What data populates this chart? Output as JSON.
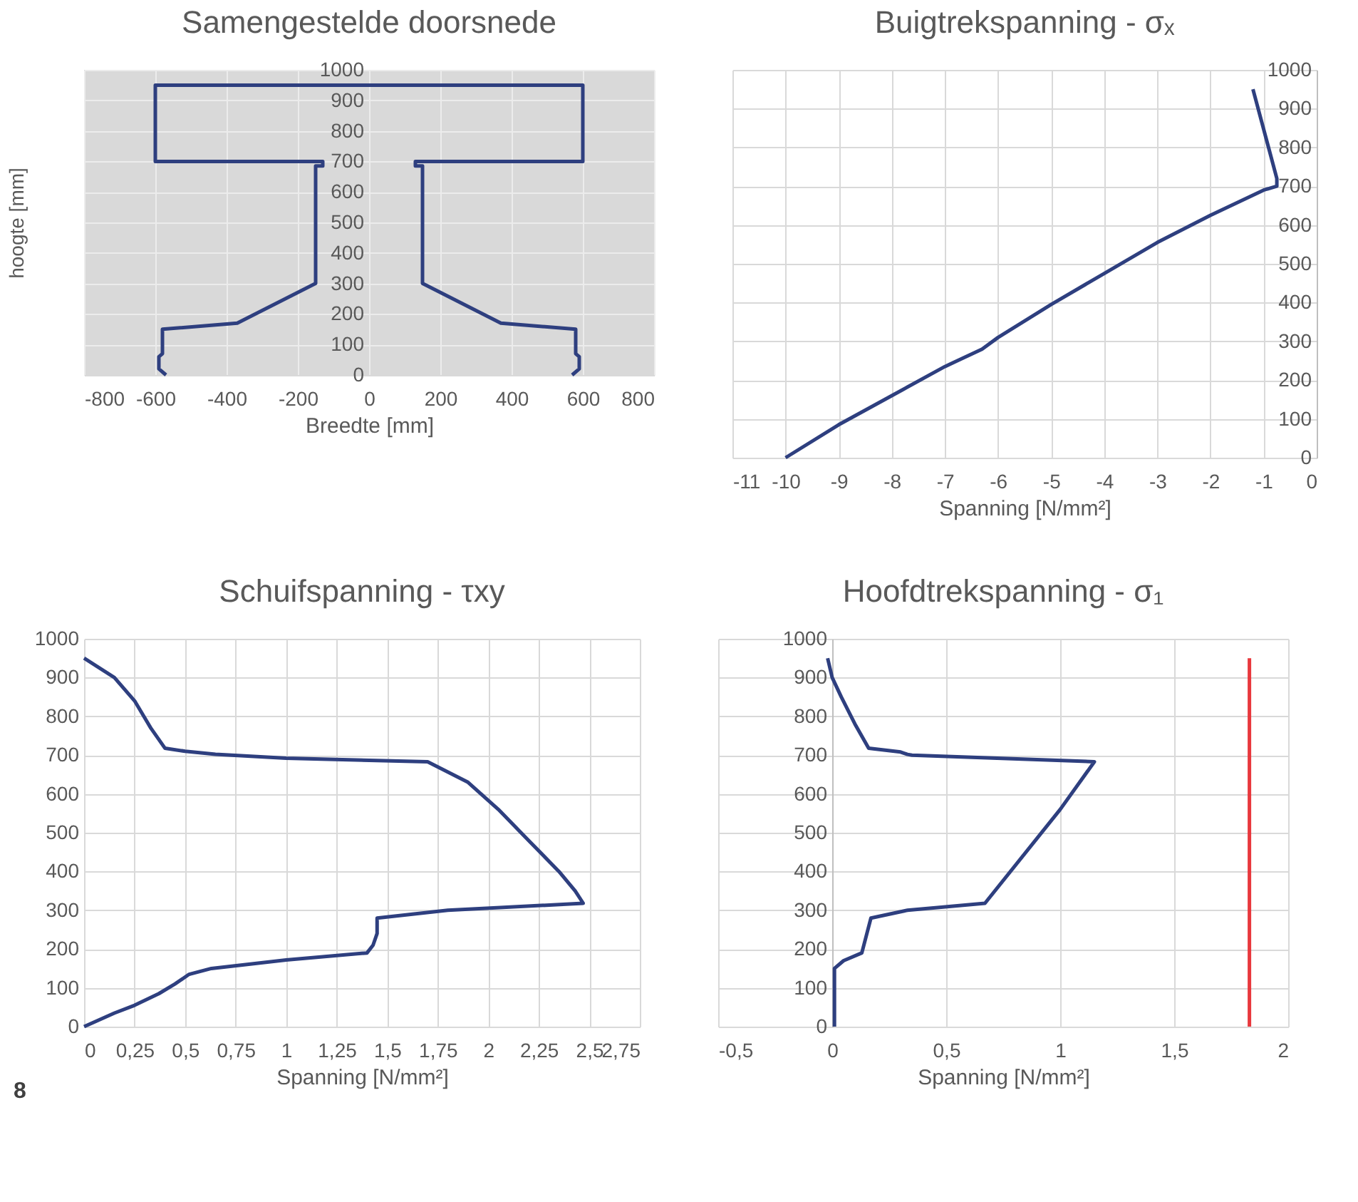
{
  "chart_data": [
    {
      "type": "line",
      "title": "Samengestelde doorsnede",
      "xlabel": "Breedte [mm]",
      "ylabel": "hoogte [mm]",
      "xlim": [
        -800,
        800
      ],
      "xticks": [
        -800,
        -600,
        -400,
        -200,
        0,
        200,
        400,
        600,
        800
      ],
      "ylim": [
        0,
        1000
      ],
      "yticks": [
        0,
        100,
        200,
        300,
        400,
        500,
        600,
        700,
        800,
        900,
        1000
      ],
      "grid": true,
      "marker": "none",
      "line_style": "solid",
      "series": [
        {
          "color": "#2e3f7f",
          "x": [
            -570,
            -590,
            -590,
            -580,
            -580,
            -370,
            -150,
            -150,
            -130,
            -130,
            -600,
            -600,
            600,
            600,
            130,
            130,
            150,
            150,
            370,
            580,
            580,
            590,
            590,
            570
          ],
          "values": [
            0,
            20,
            60,
            70,
            150,
            170,
            300,
            685,
            685,
            700,
            700,
            950,
            950,
            700,
            700,
            685,
            685,
            300,
            170,
            150,
            70,
            60,
            20,
            0
          ]
        }
      ]
    },
    {
      "type": "line",
      "title": "Buigtrekspanning - σₓ",
      "xlabel": "Spanning [N/mm²]",
      "xlim": [
        -11,
        0
      ],
      "xticks": [
        -11,
        -10,
        -9,
        -8,
        -7,
        -6,
        -5,
        -4,
        -3,
        -2,
        -1,
        0
      ],
      "ylim": [
        0,
        1000
      ],
      "yticks": [
        0,
        100,
        200,
        300,
        400,
        500,
        600,
        700,
        800,
        900,
        1000
      ],
      "grid": true,
      "marker": "none",
      "line_style": "solid",
      "series": [
        {
          "color": "#2e3f7f",
          "x": [
            -10,
            -9,
            -8,
            -7,
            -6.3,
            -6,
            -5,
            -4,
            -3,
            -2,
            -1,
            -0.75,
            -0.75,
            -1.2
          ],
          "values": [
            0,
            85,
            160,
            235,
            280,
            310,
            395,
            475,
            555,
            625,
            690,
            700,
            720,
            950
          ]
        }
      ]
    },
    {
      "type": "line",
      "title": "Schuifspanning - τxy",
      "xlabel": "Spanning [N/mm²]",
      "xlim": [
        0,
        2.75
      ],
      "xticks": [
        0,
        {
          "value": 0.25,
          "label": "0,25"
        },
        {
          "value": 0.5,
          "label": "0,5"
        },
        {
          "value": 0.75,
          "label": "0,75"
        },
        1,
        {
          "value": 1.25,
          "label": "1,25"
        },
        {
          "value": 1.5,
          "label": "1,5"
        },
        {
          "value": 1.75,
          "label": "1,75"
        },
        2,
        {
          "value": 2.25,
          "label": "2,25"
        },
        {
          "value": 2.5,
          "label": "2,5"
        },
        {
          "value": 2.75,
          "label": "2,75"
        }
      ],
      "ylim": [
        0,
        1000
      ],
      "yticks": [
        0,
        100,
        200,
        300,
        400,
        500,
        600,
        700,
        800,
        900,
        1000
      ],
      "grid": true,
      "marker": "none",
      "line_style": "solid",
      "annotations": [
        "8"
      ],
      "series": [
        {
          "color": "#2e3f7f",
          "x": [
            0,
            0.15,
            0.25,
            0.37,
            0.45,
            0.52,
            0.63,
            1.0,
            1.4,
            1.43,
            1.45,
            1.45,
            1.8,
            2.47,
            2.43,
            2.35,
            2.2,
            2.05,
            1.9,
            1.7,
            1.0,
            0.65,
            0.5,
            0.4,
            0.33,
            0.25,
            0.15,
            0
          ],
          "values": [
            0,
            35,
            55,
            85,
            110,
            135,
            150,
            172,
            190,
            210,
            240,
            280,
            300,
            318,
            350,
            400,
            480,
            560,
            630,
            683,
            692,
            702,
            710,
            718,
            770,
            840,
            900,
            950
          ]
        }
      ]
    },
    {
      "type": "line",
      "title": "Hoofdtrekspanning - σ₁",
      "xlabel": "Spanning [N/mm²]",
      "xlim": [
        -0.5,
        2
      ],
      "xticks": [
        {
          "value": -0.5,
          "label": "-0,5"
        },
        0,
        {
          "value": 0.5,
          "label": "0,5"
        },
        1,
        {
          "value": 1.5,
          "label": "1,5"
        },
        2
      ],
      "ylim": [
        0,
        1000
      ],
      "yticks": [
        0,
        100,
        200,
        300,
        400,
        500,
        600,
        700,
        800,
        900,
        1000
      ],
      "grid": true,
      "marker": "none",
      "line_style": "solid",
      "series": [
        {
          "color": "#2e3f7f",
          "x": [
            0.01,
            0.01,
            0.01,
            0.05,
            0.13,
            0.17,
            0.33,
            0.67,
            1.0,
            1.15,
            0.35,
            0.33,
            0.3,
            0.16,
            0.1,
            0.04,
            0.0,
            -0.02
          ],
          "values": [
            0,
            100,
            150,
            170,
            190,
            280,
            300,
            318,
            560,
            683,
            700,
            702,
            708,
            718,
            780,
            850,
            900,
            950
          ]
        },
        {
          "color": "#e8383d",
          "x": [
            1.83,
            1.83
          ],
          "values": [
            0,
            950
          ]
        }
      ]
    }
  ]
}
